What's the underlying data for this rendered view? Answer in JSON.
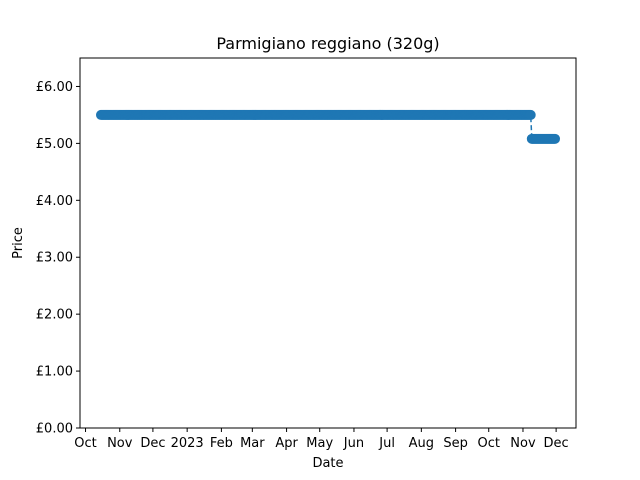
{
  "chart_data": {
    "type": "line",
    "title": "Parmigiano reggiano (320g)",
    "xlabel": "Date",
    "ylabel": "Price",
    "ylim": [
      0,
      6.5
    ],
    "xlim": [
      "2022-09-26",
      "2023-12-19"
    ],
    "y_ticks": [
      {
        "value": 0,
        "label": "£0.00"
      },
      {
        "value": 1,
        "label": "£1.00"
      },
      {
        "value": 2,
        "label": "£2.00"
      },
      {
        "value": 3,
        "label": "£3.00"
      },
      {
        "value": 4,
        "label": "£4.00"
      },
      {
        "value": 5,
        "label": "£5.00"
      },
      {
        "value": 6,
        "label": "£6.00"
      }
    ],
    "x_ticks": [
      {
        "date": "2022-10-01",
        "label": "Oct"
      },
      {
        "date": "2022-11-01",
        "label": "Nov"
      },
      {
        "date": "2022-12-01",
        "label": "Dec"
      },
      {
        "date": "2023-01-01",
        "label": "2023"
      },
      {
        "date": "2023-02-01",
        "label": "Feb"
      },
      {
        "date": "2023-03-01",
        "label": "Mar"
      },
      {
        "date": "2023-04-01",
        "label": "Apr"
      },
      {
        "date": "2023-05-01",
        "label": "May"
      },
      {
        "date": "2023-06-01",
        "label": "Jun"
      },
      {
        "date": "2023-07-01",
        "label": "Jul"
      },
      {
        "date": "2023-08-01",
        "label": "Aug"
      },
      {
        "date": "2023-09-01",
        "label": "Sep"
      },
      {
        "date": "2023-10-01",
        "label": "Oct"
      },
      {
        "date": "2023-11-01",
        "label": "Nov"
      },
      {
        "date": "2023-12-01",
        "label": "Dec"
      }
    ],
    "segments": [
      {
        "start": "2022-10-15",
        "end": "2023-11-08",
        "value": 5.5
      },
      {
        "start": "2023-11-09",
        "end": "2023-11-30",
        "value": 5.08
      }
    ],
    "grid": false,
    "colors": {
      "series": "#1f77b4"
    }
  }
}
